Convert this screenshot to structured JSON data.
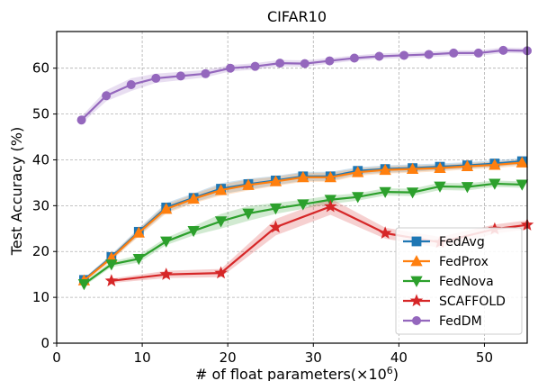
{
  "chart_data": {
    "type": "line",
    "title": "CIFAR10",
    "xlabel": "# of float parameters(×10",
    "xlabel_sup": "6",
    "xlabel_close": ")",
    "ylabel": "Test Accuracy (%)",
    "xlim": [
      0,
      55
    ],
    "ylim": [
      0,
      68
    ],
    "xticks": [
      "0",
      "10",
      "20",
      "30",
      "40",
      "50"
    ],
    "yticks": [
      "0",
      "10",
      "20",
      "30",
      "40",
      "50",
      "60"
    ],
    "grid": true,
    "legend_position": "lower-right",
    "series": [
      {
        "name": "FedAvg",
        "color": "#1f77b4",
        "marker": "square",
        "x": [
          3.2,
          6.4,
          9.6,
          12.8,
          16.0,
          19.2,
          22.4,
          25.6,
          28.8,
          32.0,
          35.2,
          38.4,
          41.6,
          44.8,
          48.0,
          51.2,
          54.4
        ],
        "y": [
          13.8,
          18.8,
          24.3,
          29.6,
          31.7,
          33.7,
          34.7,
          35.5,
          36.4,
          36.4,
          37.6,
          38.0,
          38.2,
          38.5,
          38.8,
          39.2,
          39.7
        ],
        "band": [
          0.4,
          0.6,
          0.8,
          1.0,
          1.0,
          1.2,
          1.2,
          1.0,
          1.0,
          1.0,
          0.8,
          0.8,
          0.8,
          0.7,
          0.7,
          0.7,
          0.7
        ]
      },
      {
        "name": "FedProx",
        "color": "#ff7f0e",
        "marker": "triangle-up",
        "x": [
          3.2,
          6.4,
          9.6,
          12.8,
          16.0,
          19.2,
          22.4,
          25.6,
          28.8,
          32.0,
          35.2,
          38.4,
          41.6,
          44.8,
          48.0,
          51.2,
          54.4
        ],
        "y": [
          13.7,
          18.6,
          24.1,
          29.3,
          31.5,
          33.4,
          34.5,
          35.3,
          36.2,
          36.2,
          37.3,
          37.8,
          38.0,
          38.2,
          38.6,
          38.9,
          39.4
        ],
        "band": [
          0.4,
          0.6,
          0.8,
          1.0,
          1.0,
          1.2,
          1.2,
          1.0,
          1.0,
          1.0,
          0.8,
          0.8,
          0.8,
          0.7,
          0.7,
          0.7,
          0.7
        ]
      },
      {
        "name": "FedNova",
        "color": "#2ca02c",
        "marker": "triangle-down",
        "x": [
          3.2,
          6.4,
          9.6,
          12.8,
          16.0,
          19.2,
          22.4,
          25.6,
          28.8,
          32.0,
          35.2,
          38.4,
          41.6,
          44.8,
          48.0,
          51.2,
          54.4
        ],
        "y": [
          12.9,
          17.2,
          18.4,
          22.2,
          24.5,
          26.6,
          28.3,
          29.4,
          30.3,
          31.3,
          31.9,
          33.0,
          32.9,
          34.2,
          34.1,
          34.8,
          34.6
        ],
        "band": [
          0.5,
          0.6,
          0.8,
          0.8,
          1.0,
          1.6,
          1.6,
          1.2,
          1.0,
          0.9,
          0.8,
          0.8,
          0.8,
          0.8,
          0.8,
          0.7,
          0.7
        ]
      },
      {
        "name": "SCAFFOLD",
        "color": "#d62728",
        "marker": "star",
        "x": [
          6.4,
          12.8,
          19.2,
          25.6,
          32.0,
          38.4,
          44.8,
          51.2,
          55.0
        ],
        "y": [
          13.6,
          15.0,
          15.3,
          25.3,
          29.8,
          24.0,
          22.0,
          24.9,
          25.8
        ],
        "band": [
          0.5,
          0.8,
          0.9,
          1.8,
          1.8,
          1.2,
          1.2,
          1.0,
          1.0
        ]
      },
      {
        "name": "FedDM",
        "color": "#9467bd",
        "marker": "circle",
        "x": [
          2.9,
          5.8,
          8.7,
          11.6,
          14.5,
          17.4,
          20.3,
          23.2,
          26.1,
          29.0,
          31.9,
          34.8,
          37.7,
          40.6,
          43.5,
          46.4,
          49.3,
          52.2,
          55.0
        ],
        "y": [
          48.7,
          54.0,
          56.4,
          57.8,
          58.3,
          58.8,
          60.0,
          60.4,
          61.1,
          61.0,
          61.6,
          62.2,
          62.6,
          62.8,
          63.0,
          63.3,
          63.3,
          63.9,
          63.8
        ],
        "band": [
          0.8,
          1.2,
          1.4,
          1.0,
          0.9,
          0.8,
          0.7,
          0.7,
          0.7,
          0.7,
          0.6,
          0.6,
          0.6,
          0.6,
          0.6,
          0.6,
          0.6,
          0.6,
          0.6
        ]
      }
    ]
  }
}
